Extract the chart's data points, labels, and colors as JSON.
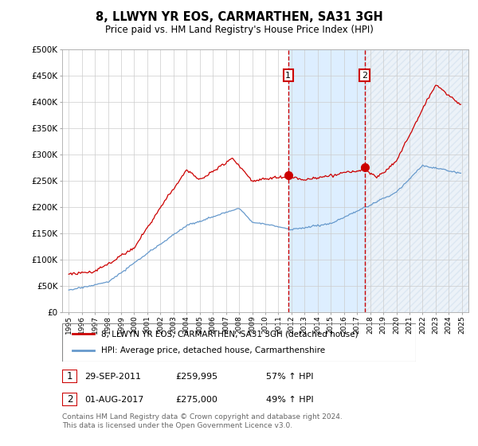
{
  "title": "8, LLWYN YR EOS, CARMARTHEN, SA31 3GH",
  "subtitle": "Price paid vs. HM Land Registry's House Price Index (HPI)",
  "legend_line1": "8, LLWYN YR EOS, CARMARTHEN, SA31 3GH (detached house)",
  "legend_line2": "HPI: Average price, detached house, Carmarthenshire",
  "annotation1_label": "1",
  "annotation1_date": "29-SEP-2011",
  "annotation1_price": "£259,995",
  "annotation1_hpi": "57% ↑ HPI",
  "annotation2_label": "2",
  "annotation2_date": "01-AUG-2017",
  "annotation2_price": "£275,000",
  "annotation2_hpi": "49% ↑ HPI",
  "vline1_x": 2011.75,
  "vline2_x": 2017.58,
  "sale1_x": 2011.75,
  "sale1_y": 259995,
  "sale2_x": 2017.58,
  "sale2_y": 275000,
  "footnote": "Contains HM Land Registry data © Crown copyright and database right 2024.\nThis data is licensed under the Open Government Licence v3.0.",
  "red_color": "#cc0000",
  "blue_color": "#6699cc",
  "background_color": "#ffffff",
  "shading_color": "#ddeeff",
  "grid_color": "#cccccc",
  "ylim": [
    0,
    500000
  ],
  "xlim": [
    1994.5,
    2025.5
  ],
  "yticks": [
    0,
    50000,
    100000,
    150000,
    200000,
    250000,
    300000,
    350000,
    400000,
    450000,
    500000
  ]
}
